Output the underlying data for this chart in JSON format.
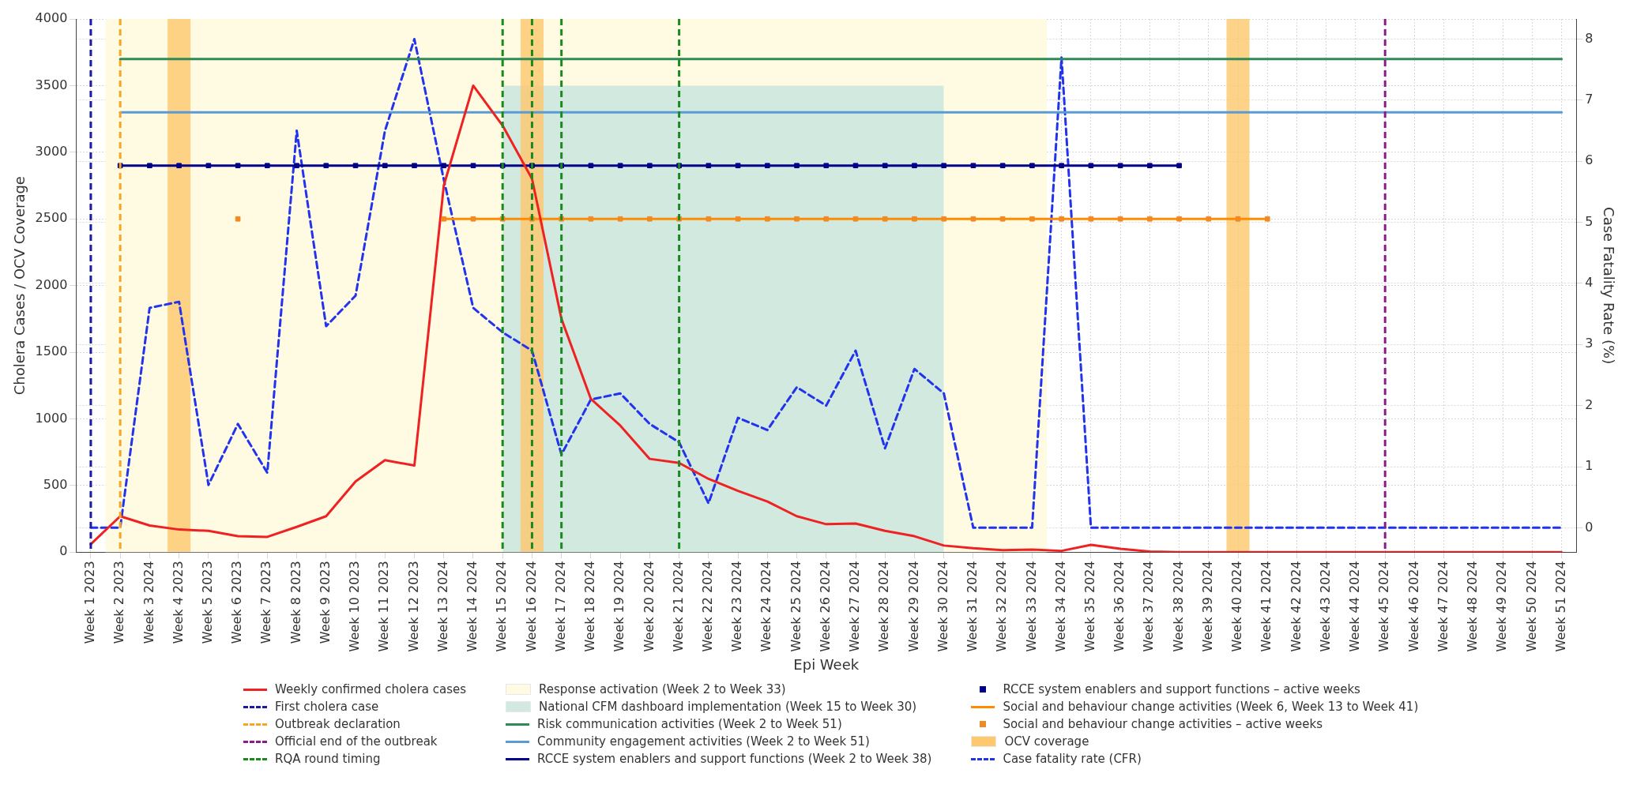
{
  "chart_data": {
    "type": "line",
    "xlabel": "Epi Week",
    "ylabel": "Cholera Cases / OCV Coverage",
    "y2label": "Case Fatality Rate (%)",
    "categories": [
      "Week 1 2023",
      "Week 2 2023",
      "Week 3 2024",
      "Week 4 2023",
      "Week 5 2023",
      "Week 6 2023",
      "Week 7 2023",
      "Week 8 2023",
      "Week 9 2023",
      "Week 10 2023",
      "Week 11 2023",
      "Week 12 2023",
      "Week 13 2024",
      "Week 14 2024",
      "Week 15 2024",
      "Week 16 2024",
      "Week 17 2024",
      "Week 18 2024",
      "Week 19 2024",
      "Week 20 2024",
      "Week 21 2024",
      "Week 22 2024",
      "Week 23 2024",
      "Week 24 2024",
      "Week 25 2024",
      "Week 26 2024",
      "Week 27 2024",
      "Week 28 2024",
      "Week 29 2024",
      "Week 30 2024",
      "Week 31 2024",
      "Week 32 2024",
      "Week 33 2024",
      "Week 34 2024",
      "Week 35 2024",
      "Week 36 2024",
      "Week 37 2024",
      "Week 38 2024",
      "Week 39 2024",
      "Week 40 2024",
      "Week 41 2024",
      "Week 42 2024",
      "Week 43 2024",
      "Week 44 2024",
      "Week 45 2024",
      "Week 46 2024",
      "Week 47 2024",
      "Week 48 2024",
      "Week 49 2024",
      "Week 50 2024",
      "Week 51 2024"
    ],
    "series": [
      {
        "name": "Weekly confirmed cholera cases",
        "color": "#ee2222",
        "values": [
          60,
          270,
          200,
          170,
          160,
          120,
          115,
          190,
          270,
          530,
          690,
          650,
          2750,
          3500,
          3200,
          2800,
          1750,
          1150,
          950,
          700,
          670,
          550,
          460,
          380,
          270,
          210,
          215,
          160,
          120,
          50,
          30,
          15,
          20,
          10,
          55,
          25,
          5,
          0,
          0,
          0,
          0,
          0,
          0,
          0,
          0,
          0,
          0,
          0,
          0,
          0,
          0
        ]
      },
      {
        "name": "National CFM dashboard implementation (Week 15 to Week 30)",
        "type": "area",
        "color": "#d2e9df",
        "values": [
          null,
          null,
          null,
          null,
          null,
          null,
          null,
          null,
          null,
          null,
          null,
          null,
          null,
          null,
          3500,
          3500,
          3500,
          3500,
          3500,
          3500,
          3500,
          3500,
          3500,
          3500,
          3500,
          3500,
          3500,
          3500,
          3500,
          3500,
          null,
          null,
          null,
          null,
          null,
          null,
          null,
          null,
          null,
          null,
          null,
          null,
          null,
          null,
          null,
          null,
          null,
          null,
          null,
          null,
          null
        ]
      },
      {
        "name": "Risk communication activities (Week 2 to Week 51)",
        "type": "line",
        "color": "#2e8b57",
        "values": [
          null,
          3700,
          3700,
          3700,
          3700,
          3700,
          3700,
          3700,
          3700,
          3700,
          3700,
          3700,
          3700,
          3700,
          3700,
          3700,
          3700,
          3700,
          3700,
          3700,
          3700,
          3700,
          3700,
          3700,
          3700,
          3700,
          3700,
          3700,
          3700,
          3700,
          3700,
          3700,
          3700,
          3700,
          3700,
          3700,
          3700,
          3700,
          3700,
          3700,
          3700,
          3700,
          3700,
          3700,
          3700,
          3700,
          3700,
          3700,
          3700,
          3700,
          3700
        ]
      },
      {
        "name": "Community engagement activities (Week 2 to Week 51)",
        "type": "line",
        "color": "#5b9bd5",
        "values": [
          null,
          3300,
          3300,
          3300,
          3300,
          3300,
          3300,
          3300,
          3300,
          3300,
          3300,
          3300,
          3300,
          3300,
          3300,
          3300,
          3300,
          3300,
          3300,
          3300,
          3300,
          3300,
          3300,
          3300,
          3300,
          3300,
          3300,
          3300,
          3300,
          3300,
          3300,
          3300,
          3300,
          3300,
          3300,
          3300,
          3300,
          3300,
          3300,
          3300,
          3300,
          3300,
          3300,
          3300,
          3300,
          3300,
          3300,
          3300,
          3300,
          3300,
          3300
        ]
      },
      {
        "name": "RCCE system enablers and support functions (Week 2 to Week 38)",
        "type": "line",
        "color": "#00008b",
        "values": [
          null,
          2900,
          2900,
          2900,
          2900,
          2900,
          2900,
          2900,
          2900,
          2900,
          2900,
          2900,
          2900,
          2900,
          2900,
          2900,
          2900,
          2900,
          2900,
          2900,
          2900,
          2900,
          2900,
          2900,
          2900,
          2900,
          2900,
          2900,
          2900,
          2900,
          2900,
          2900,
          2900,
          2900,
          2900,
          2900,
          2900,
          2900,
          null,
          null,
          null,
          null,
          null,
          null,
          null,
          null,
          null,
          null,
          null,
          null,
          null
        ]
      },
      {
        "name": "RCCE system enablers and support functions – active weeks",
        "type": "scatter",
        "marker": "square",
        "color": "#00008b",
        "values": [
          null,
          2900,
          2900,
          2900,
          2900,
          2900,
          2900,
          2900,
          2900,
          2900,
          2900,
          2900,
          2900,
          2900,
          2900,
          2900,
          2900,
          2900,
          2900,
          2900,
          2900,
          2900,
          2900,
          2900,
          2900,
          2900,
          2900,
          2900,
          2900,
          2900,
          2900,
          2900,
          2900,
          2900,
          2900,
          2900,
          2900,
          2900,
          null,
          null,
          null,
          null,
          null,
          null,
          null,
          null,
          null,
          null,
          null,
          null,
          null
        ]
      },
      {
        "name": "Social and behaviour change activities (Week 6, Week 13 to Week 41)",
        "type": "line",
        "color": "#ff8c00",
        "values": [
          null,
          null,
          null,
          null,
          null,
          null,
          null,
          null,
          null,
          null,
          null,
          null,
          2500,
          2500,
          2500,
          2500,
          2500,
          2500,
          2500,
          2500,
          2500,
          2500,
          2500,
          2500,
          2500,
          2500,
          2500,
          2500,
          2500,
          2500,
          2500,
          2500,
          2500,
          2500,
          2500,
          2500,
          2500,
          2500,
          2500,
          2500,
          2500,
          null,
          null,
          null,
          null,
          null,
          null,
          null,
          null,
          null,
          null
        ]
      },
      {
        "name": "Social and behaviour change activities – active weeks",
        "type": "scatter",
        "marker": "square",
        "color": "#f08a24",
        "values": [
          null,
          null,
          null,
          null,
          null,
          2500,
          null,
          null,
          null,
          null,
          null,
          null,
          2500,
          2500,
          2500,
          2500,
          2500,
          2500,
          2500,
          2500,
          2500,
          2500,
          2500,
          2500,
          2500,
          2500,
          2500,
          2500,
          2500,
          2500,
          2500,
          2500,
          2500,
          2500,
          2500,
          2500,
          2500,
          2500,
          2500,
          2500,
          2500,
          null,
          null,
          null,
          null,
          null,
          null,
          null,
          null,
          null,
          null
        ]
      },
      {
        "name": "OCV coverage",
        "type": "bar",
        "color": "#fdc86e",
        "values": [
          null,
          null,
          null,
          4000,
          null,
          null,
          null,
          null,
          null,
          null,
          null,
          null,
          null,
          null,
          null,
          4000,
          null,
          null,
          null,
          null,
          null,
          null,
          null,
          null,
          null,
          null,
          null,
          null,
          null,
          null,
          null,
          null,
          null,
          null,
          null,
          null,
          null,
          null,
          null,
          4000,
          null,
          null,
          null,
          null,
          null,
          null,
          null,
          null,
          null,
          null,
          null
        ]
      },
      {
        "name": "Case fatality rate (CFR)",
        "axis": "y2",
        "line_style": "dashed",
        "color": "#2233ee",
        "values": [
          0,
          0,
          3.6,
          3.7,
          0.7,
          1.7,
          0.9,
          6.5,
          3.3,
          3.8,
          6.5,
          8.0,
          5.7,
          3.6,
          3.2,
          2.9,
          1.2,
          2.1,
          2.2,
          1.7,
          1.4,
          0.4,
          1.8,
          1.6,
          2.3,
          2.0,
          2.9,
          1.3,
          2.6,
          2.2,
          0,
          0,
          0,
          7.7,
          0,
          0,
          0,
          0,
          0,
          0,
          0,
          0,
          0,
          0,
          0,
          0,
          0,
          0,
          0,
          0,
          0
        ]
      }
    ],
    "ref_lines": [
      {
        "axis": "x",
        "value": "Week 1 2023",
        "label": "First cholera case",
        "color": "#1a1aa6",
        "line_style": "dashed"
      },
      {
        "axis": "x",
        "value": "Week 2 2023",
        "label": "Outbreak declaration",
        "color": "#f5a623",
        "line_style": "dashed"
      },
      {
        "axis": "x",
        "value": "Week 45 2024",
        "label": "Official end of the outbreak",
        "color": "#8b1a8b",
        "line_style": "dashed"
      },
      {
        "axis": "x",
        "value": "Week 15 2024",
        "label": "RQA round timing",
        "color": "#1a8a1a",
        "line_style": "dashed"
      },
      {
        "axis": "x",
        "value": "Week 16 2024",
        "color": "#1a8a1c",
        "line_style": "dashed"
      },
      {
        "axis": "x",
        "value": "Week 17 2024",
        "color": "#1a8a1e",
        "line_style": "dashed"
      },
      {
        "axis": "x",
        "value": "Week 21 2024",
        "color": "#1a8a20",
        "line_style": "dashed"
      }
    ],
    "bands": [
      {
        "axis": "x",
        "from": "Week 2 2023",
        "to": "Week 33 2024",
        "label": "Response activation (Week 2 to Week 33)",
        "color": "#fffbe3"
      }
    ],
    "ylim": [
      0,
      4000
    ],
    "yticks": [
      0,
      500,
      1000,
      1500,
      2000,
      2500,
      3000,
      3500,
      4000
    ],
    "y2lim": [
      -0.4,
      8.33
    ],
    "y2ticks": [
      0,
      1,
      2,
      3,
      4,
      5,
      6,
      7,
      8
    ],
    "grid": true,
    "legend": "bottom"
  }
}
